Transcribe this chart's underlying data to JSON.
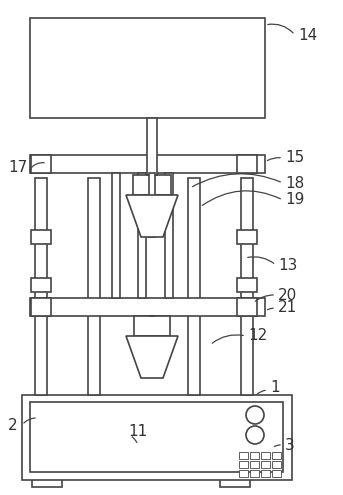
{
  "fig_width": 3.43,
  "fig_height": 4.95,
  "dpi": 100,
  "bg_color": "#ffffff",
  "line_color": "#444444",
  "lw": 1.2,
  "label_fs": 11,
  "label_color": "#333333"
}
